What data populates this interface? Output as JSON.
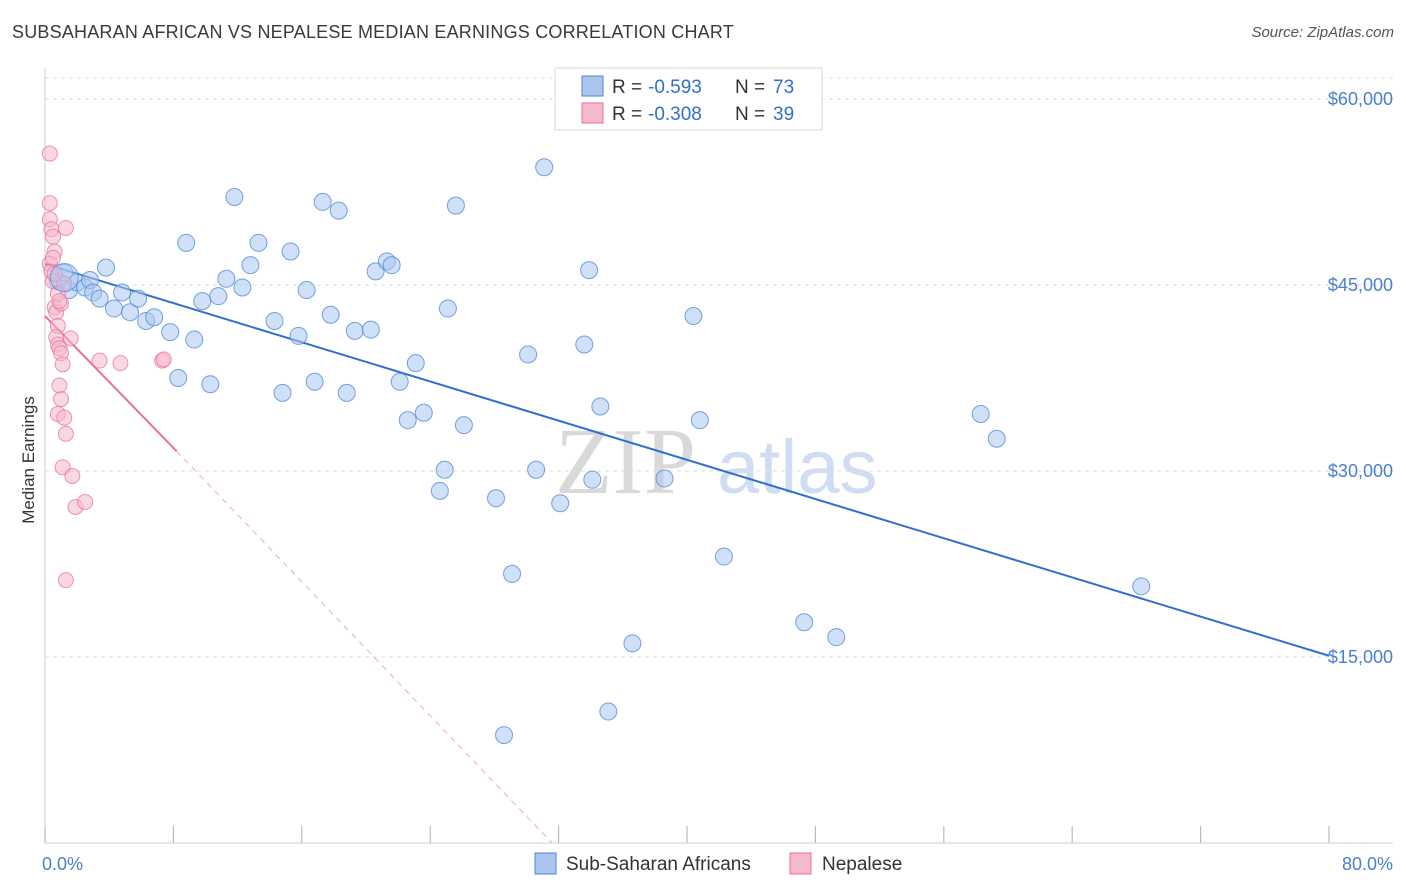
{
  "title": "SUBSAHARAN AFRICAN VS NEPALESE MEDIAN EARNINGS CORRELATION CHART",
  "source": "Source: ZipAtlas.com",
  "colors": {
    "blue": "#4a86d8",
    "blue_fill": "#aac6ee",
    "pink": "#e8709a",
    "pink_fill": "#f5b8cc",
    "grid": "#dddddd",
    "axis_text": "#4a7fd0"
  },
  "legend": {
    "r_label": "R =",
    "n_label": "N =",
    "series": [
      {
        "r": "-0.593",
        "n": "73"
      },
      {
        "r": "-0.308",
        "n": "39"
      }
    ]
  },
  "watermark": {
    "zip": "ZIP",
    "atlas": "atlas"
  },
  "chart_data": {
    "type": "scatter",
    "title": "SUBSAHARAN AFRICAN VS NEPALESE MEDIAN EARNINGS CORRELATION CHART",
    "xlabel": "",
    "ylabel": "Median Earnings",
    "xlim": [
      0,
      80
    ],
    "ylim": [
      0,
      62500
    ],
    "x_tick_labels": [
      "0.0%",
      "80.0%"
    ],
    "y_ticks": [
      15000,
      30000,
      45000,
      60000
    ],
    "y_tick_labels": [
      "$15,000",
      "$30,000",
      "$45,000",
      "$60,000"
    ],
    "series": [
      {
        "name": "Sub-Saharan Africans",
        "r": -0.593,
        "n": 73,
        "trend": {
          "x": [
            0,
            80
          ],
          "y": [
            46700,
            15100
          ]
        },
        "points": [
          [
            0.8,
            45300
          ],
          [
            1.2,
            46000
          ],
          [
            1.5,
            44600
          ],
          [
            2.0,
            45200
          ],
          [
            2.5,
            44800
          ],
          [
            2.8,
            45400
          ],
          [
            3.0,
            44400
          ],
          [
            3.4,
            43900
          ],
          [
            3.8,
            46400
          ],
          [
            4.3,
            43100
          ],
          [
            4.8,
            44400
          ],
          [
            5.3,
            42800
          ],
          [
            5.8,
            43900
          ],
          [
            6.3,
            42100
          ],
          [
            6.8,
            42400
          ],
          [
            7.8,
            41200
          ],
          [
            8.3,
            37500
          ],
          [
            8.8,
            48400
          ],
          [
            9.3,
            40600
          ],
          [
            9.8,
            43700
          ],
          [
            10.3,
            37000
          ],
          [
            10.8,
            44100
          ],
          [
            11.3,
            45500
          ],
          [
            11.8,
            52100
          ],
          [
            12.3,
            44800
          ],
          [
            12.8,
            46600
          ],
          [
            13.3,
            48400
          ],
          [
            14.3,
            42100
          ],
          [
            14.8,
            36300
          ],
          [
            15.3,
            47700
          ],
          [
            15.8,
            40900
          ],
          [
            16.3,
            44600
          ],
          [
            16.8,
            37200
          ],
          [
            17.3,
            51700
          ],
          [
            17.8,
            42600
          ],
          [
            18.3,
            51000
          ],
          [
            18.8,
            36300
          ],
          [
            19.3,
            41300
          ],
          [
            20.3,
            41400
          ],
          [
            20.6,
            46100
          ],
          [
            21.3,
            46900
          ],
          [
            21.6,
            46600
          ],
          [
            22.1,
            37200
          ],
          [
            22.6,
            34100
          ],
          [
            23.1,
            38700
          ],
          [
            23.6,
            34700
          ],
          [
            24.6,
            28400
          ],
          [
            24.9,
            30100
          ],
          [
            25.1,
            43100
          ],
          [
            25.6,
            51400
          ],
          [
            26.1,
            33700
          ],
          [
            28.1,
            27800
          ],
          [
            28.6,
            8700
          ],
          [
            29.1,
            21700
          ],
          [
            30.1,
            39400
          ],
          [
            30.6,
            30100
          ],
          [
            31.1,
            54500
          ],
          [
            32.1,
            27400
          ],
          [
            33.6,
            40200
          ],
          [
            33.9,
            46200
          ],
          [
            34.1,
            29300
          ],
          [
            34.6,
            35200
          ],
          [
            35.1,
            10600
          ],
          [
            36.6,
            16100
          ],
          [
            38.6,
            29400
          ],
          [
            40.4,
            42500
          ],
          [
            40.8,
            34100
          ],
          [
            42.3,
            23100
          ],
          [
            47.3,
            17800
          ],
          [
            49.3,
            16600
          ],
          [
            58.3,
            34600
          ],
          [
            59.3,
            32600
          ],
          [
            68.3,
            20700
          ]
        ]
      },
      {
        "name": "Nepalese",
        "r": -0.308,
        "n": 39,
        "trend": {
          "x": [
            0,
            8.2
          ],
          "y": [
            42500,
            31600
          ]
        },
        "trend_extended": {
          "x": [
            8.2,
            31.6
          ],
          "y": [
            31600,
            0
          ]
        },
        "points": [
          [
            0.3,
            55600
          ],
          [
            0.3,
            51600
          ],
          [
            0.3,
            50300
          ],
          [
            0.4,
            49500
          ],
          [
            0.5,
            48900
          ],
          [
            0.6,
            47700
          ],
          [
            0.3,
            46700
          ],
          [
            0.4,
            46100
          ],
          [
            0.5,
            45300
          ],
          [
            0.6,
            43200
          ],
          [
            0.7,
            42800
          ],
          [
            0.8,
            41700
          ],
          [
            1.0,
            43500
          ],
          [
            1.2,
            45100
          ],
          [
            1.3,
            49600
          ],
          [
            0.7,
            40800
          ],
          [
            0.8,
            40200
          ],
          [
            0.9,
            39900
          ],
          [
            1.0,
            39500
          ],
          [
            1.1,
            38600
          ],
          [
            0.9,
            36900
          ],
          [
            1.0,
            35800
          ],
          [
            0.8,
            34600
          ],
          [
            1.2,
            34300
          ],
          [
            1.3,
            33000
          ],
          [
            1.1,
            30300
          ],
          [
            1.6,
            40700
          ],
          [
            1.7,
            29600
          ],
          [
            1.9,
            27100
          ],
          [
            2.5,
            27500
          ],
          [
            1.3,
            21200
          ],
          [
            3.4,
            38900
          ],
          [
            4.7,
            38700
          ],
          [
            7.3,
            38900
          ],
          [
            7.4,
            39000
          ],
          [
            0.5,
            47200
          ],
          [
            0.6,
            45900
          ],
          [
            0.8,
            44300
          ],
          [
            0.9,
            43700
          ]
        ]
      }
    ]
  }
}
